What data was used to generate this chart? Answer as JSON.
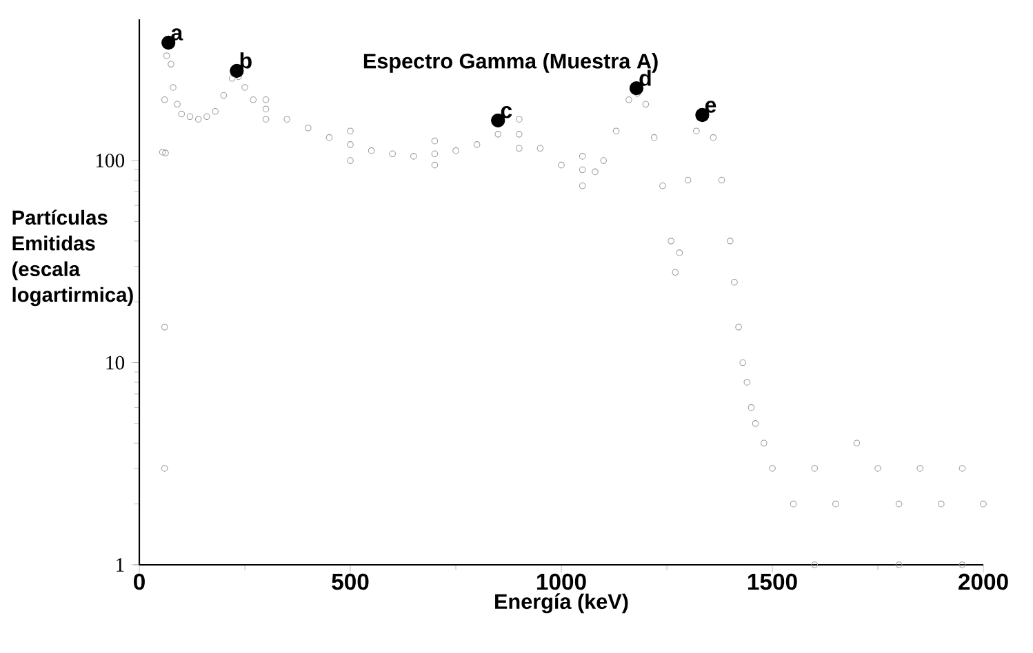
{
  "chart_data": {
    "type": "scatter",
    "title": "Espectro Gamma (Muestra A)",
    "xlabel": "Energía (keV)",
    "ylabel": "Partículas Emitidas (escala logartirmica)",
    "log": "y",
    "xlim": [
      0,
      2000
    ],
    "ylim": [
      1,
      500
    ],
    "xticks": [
      0,
      500,
      1000,
      1500,
      2000
    ],
    "yticks": [
      1,
      10,
      100
    ],
    "grid": false,
    "marker": "circle",
    "series": [
      {
        "color": "#9a9a9a",
        "x": [
          55,
          60,
          60,
          60,
          62,
          65,
          75,
          80,
          90,
          100,
          120,
          140,
          160,
          180,
          200,
          220,
          235,
          250,
          270,
          300,
          300,
          300,
          350,
          400,
          450,
          500,
          500,
          500,
          550,
          600,
          650,
          700,
          700,
          700,
          750,
          800,
          850,
          900,
          900,
          900,
          950,
          1000,
          1050,
          1050,
          1050,
          1080,
          1100,
          1130,
          1160,
          1180,
          1200,
          1220,
          1240,
          1260,
          1270,
          1280,
          1300,
          1320,
          1360,
          1380,
          1400,
          1410,
          1420,
          1430,
          1440,
          1450,
          1460,
          1480,
          1500,
          1550,
          1600,
          1650,
          1700,
          1750,
          1800,
          1850,
          1900,
          1950,
          2000,
          1600,
          1800,
          1950
        ],
        "values": [
          110,
          200,
          3,
          15,
          109,
          330,
          300,
          230,
          190,
          170,
          165,
          160,
          165,
          175,
          210,
          255,
          260,
          230,
          200,
          180,
          200,
          160,
          160,
          145,
          130,
          120,
          140,
          100,
          112,
          108,
          105,
          108,
          125,
          95,
          112,
          120,
          135,
          135,
          160,
          115,
          115,
          95,
          90,
          105,
          75,
          88,
          100,
          140,
          200,
          215,
          190,
          130,
          75,
          40,
          28,
          35,
          80,
          140,
          130,
          80,
          40,
          25,
          15,
          10,
          8,
          6,
          5,
          4,
          3,
          2,
          3,
          2,
          4,
          3,
          2,
          3,
          2,
          3,
          2,
          1,
          1,
          1
        ]
      },
      {
        "color": "#000000",
        "x": [
          69,
          231,
          850,
          1178,
          1334
        ],
        "values": [
          383,
          278,
          158,
          228,
          168
        ]
      }
    ],
    "annotations": [
      {
        "text": "a",
        "x": 69,
        "y": 383
      },
      {
        "text": "b",
        "x": 231,
        "y": 278
      },
      {
        "text": "c",
        "x": 850,
        "y": 158
      },
      {
        "text": "d",
        "x": 1178,
        "y": 228
      },
      {
        "text": "e",
        "x": 1334,
        "y": 168
      }
    ]
  }
}
